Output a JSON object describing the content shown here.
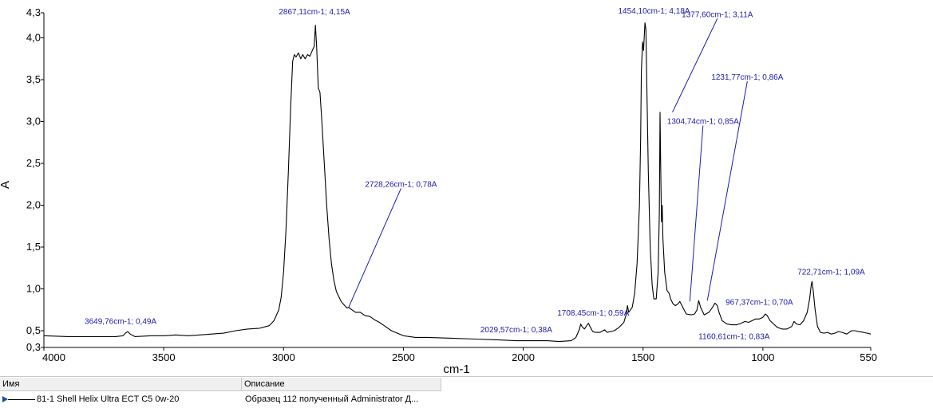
{
  "chart_data": {
    "type": "line",
    "xlabel": "cm-1",
    "ylabel": "A",
    "xlim": [
      4000,
      550
    ],
    "ylim": [
      0.3,
      4.3
    ],
    "x_ticks": [
      "4000",
      "3500",
      "3000",
      "2500",
      "2000",
      "1500",
      "1000",
      "550"
    ],
    "y_ticks": [
      "0,3",
      "0,5",
      "1,0",
      "1,5",
      "2,0",
      "2,5",
      "3,0",
      "3,5",
      "4,0",
      "4,3"
    ],
    "line_color": "#000000",
    "label_color": "#1b1bb0",
    "series": [
      {
        "name": "81-1 Shell Helix Ultra ECT C5 0w-20",
        "points": [
          [
            4000,
            0.44
          ],
          [
            3900,
            0.43
          ],
          [
            3800,
            0.43
          ],
          [
            3700,
            0.43
          ],
          [
            3670,
            0.44
          ],
          [
            3660,
            0.47
          ],
          [
            3650,
            0.49
          ],
          [
            3640,
            0.46
          ],
          [
            3620,
            0.43
          ],
          [
            3550,
            0.44
          ],
          [
            3500,
            0.44
          ],
          [
            3450,
            0.45
          ],
          [
            3400,
            0.44
          ],
          [
            3350,
            0.45
          ],
          [
            3300,
            0.46
          ],
          [
            3250,
            0.47
          ],
          [
            3200,
            0.5
          ],
          [
            3150,
            0.52
          ],
          [
            3100,
            0.53
          ],
          [
            3060,
            0.56
          ],
          [
            3040,
            0.62
          ],
          [
            3020,
            0.75
          ],
          [
            3010,
            0.9
          ],
          [
            3000,
            1.2
          ],
          [
            2990,
            1.7
          ],
          [
            2980,
            2.4
          ],
          [
            2970,
            3.2
          ],
          [
            2962,
            3.72
          ],
          [
            2955,
            3.8
          ],
          [
            2948,
            3.77
          ],
          [
            2938,
            3.82
          ],
          [
            2928,
            3.75
          ],
          [
            2920,
            3.8
          ],
          [
            2910,
            3.75
          ],
          [
            2900,
            3.8
          ],
          [
            2890,
            3.78
          ],
          [
            2880,
            3.85
          ],
          [
            2872,
            3.9
          ],
          [
            2867,
            4.15
          ],
          [
            2862,
            3.9
          ],
          [
            2855,
            3.4
          ],
          [
            2848,
            3.35
          ],
          [
            2840,
            3.0
          ],
          [
            2830,
            2.5
          ],
          [
            2820,
            2.0
          ],
          [
            2810,
            1.6
          ],
          [
            2800,
            1.3
          ],
          [
            2790,
            1.1
          ],
          [
            2780,
            0.97
          ],
          [
            2760,
            0.85
          ],
          [
            2745,
            0.8
          ],
          [
            2735,
            0.77
          ],
          [
            2728,
            0.78
          ],
          [
            2720,
            0.76
          ],
          [
            2700,
            0.72
          ],
          [
            2680,
            0.72
          ],
          [
            2660,
            0.68
          ],
          [
            2640,
            0.67
          ],
          [
            2620,
            0.63
          ],
          [
            2600,
            0.6
          ],
          [
            2580,
            0.56
          ],
          [
            2550,
            0.5
          ],
          [
            2500,
            0.44
          ],
          [
            2450,
            0.42
          ],
          [
            2400,
            0.42
          ],
          [
            2300,
            0.41
          ],
          [
            2200,
            0.4
          ],
          [
            2100,
            0.39
          ],
          [
            2029,
            0.38
          ],
          [
            1950,
            0.38
          ],
          [
            1900,
            0.38
          ],
          [
            1850,
            0.37
          ],
          [
            1800,
            0.38
          ],
          [
            1780,
            0.42
          ],
          [
            1765,
            0.52
          ],
          [
            1760,
            0.58
          ],
          [
            1755,
            0.55
          ],
          [
            1745,
            0.52
          ],
          [
            1735,
            0.56
          ],
          [
            1728,
            0.59
          ],
          [
            1720,
            0.54
          ],
          [
            1710,
            0.49
          ],
          [
            1700,
            0.48
          ],
          [
            1680,
            0.48
          ],
          [
            1660,
            0.51
          ],
          [
            1650,
            0.48
          ],
          [
            1620,
            0.5
          ],
          [
            1600,
            0.54
          ],
          [
            1580,
            0.6
          ],
          [
            1570,
            0.7
          ],
          [
            1565,
            0.8
          ],
          [
            1560,
            0.72
          ],
          [
            1545,
            0.78
          ],
          [
            1535,
            0.95
          ],
          [
            1525,
            1.3
          ],
          [
            1515,
            2.0
          ],
          [
            1510,
            2.8
          ],
          [
            1507,
            3.6
          ],
          [
            1502,
            3.95
          ],
          [
            1498,
            3.85
          ],
          [
            1492,
            4.18
          ],
          [
            1488,
            4.1
          ],
          [
            1484,
            3.4
          ],
          [
            1478,
            2.4
          ],
          [
            1470,
            1.5
          ],
          [
            1462,
            1.05
          ],
          [
            1455,
            0.88
          ],
          [
            1445,
            0.88
          ],
          [
            1437,
            1.2
          ],
          [
            1432,
            1.9
          ],
          [
            1429,
            3.11
          ],
          [
            1426,
            2.4
          ],
          [
            1423,
            1.8
          ],
          [
            1420,
            2.0
          ],
          [
            1417,
            1.6
          ],
          [
            1410,
            1.2
          ],
          [
            1400,
            0.98
          ],
          [
            1392,
            0.95
          ],
          [
            1385,
            0.88
          ],
          [
            1375,
            0.82
          ],
          [
            1365,
            0.8
          ],
          [
            1355,
            0.82
          ],
          [
            1347,
            0.85
          ],
          [
            1338,
            0.8
          ],
          [
            1320,
            0.7
          ],
          [
            1300,
            0.69
          ],
          [
            1285,
            0.7
          ],
          [
            1275,
            0.75
          ],
          [
            1268,
            0.86
          ],
          [
            1260,
            0.78
          ],
          [
            1245,
            0.69
          ],
          [
            1225,
            0.72
          ],
          [
            1210,
            0.78
          ],
          [
            1200,
            0.83
          ],
          [
            1190,
            0.8
          ],
          [
            1183,
            0.72
          ],
          [
            1170,
            0.62
          ],
          [
            1150,
            0.58
          ],
          [
            1130,
            0.57
          ],
          [
            1110,
            0.57
          ],
          [
            1090,
            0.59
          ],
          [
            1075,
            0.61
          ],
          [
            1060,
            0.6
          ],
          [
            1045,
            0.62
          ],
          [
            1030,
            0.64
          ],
          [
            1015,
            0.64
          ],
          [
            1000,
            0.66
          ],
          [
            990,
            0.7
          ],
          [
            982,
            0.68
          ],
          [
            970,
            0.62
          ],
          [
            955,
            0.58
          ],
          [
            940,
            0.54
          ],
          [
            920,
            0.52
          ],
          [
            900,
            0.52
          ],
          [
            880,
            0.55
          ],
          [
            870,
            0.61
          ],
          [
            860,
            0.58
          ],
          [
            845,
            0.57
          ],
          [
            830,
            0.62
          ],
          [
            815,
            0.72
          ],
          [
            805,
            0.88
          ],
          [
            798,
            1.05
          ],
          [
            795,
            1.09
          ],
          [
            790,
            0.98
          ],
          [
            782,
            0.75
          ],
          [
            772,
            0.55
          ],
          [
            760,
            0.48
          ],
          [
            745,
            0.47
          ],
          [
            730,
            0.48
          ],
          [
            715,
            0.46
          ],
          [
            700,
            0.47
          ],
          [
            685,
            0.49
          ],
          [
            670,
            0.48
          ],
          [
            650,
            0.46
          ],
          [
            640,
            0.48
          ],
          [
            630,
            0.5
          ],
          [
            615,
            0.5
          ],
          [
            600,
            0.49
          ],
          [
            580,
            0.48
          ],
          [
            565,
            0.47
          ],
          [
            550,
            0.46
          ]
        ]
      }
    ],
    "annotations": [
      {
        "text": "3649,76cm-1; 0,49A",
        "peak": [
          3649.76,
          0.49
        ],
        "label_at": [
          3680,
          0.58
        ]
      },
      {
        "text": "2867,11cm-1; 4,15A",
        "peak": [
          2867.11,
          4.15
        ],
        "label_at": [
          2871,
          4.28
        ]
      },
      {
        "text": "2728,26cm-1; 0,78A",
        "peak": [
          2728.26,
          0.78
        ],
        "label_at": [
          2510,
          2.22
        ],
        "leader": true
      },
      {
        "text": "2029,57cm-1; 0,38A",
        "peak": [
          2029.57,
          0.38
        ],
        "label_at": [
          2029,
          0.48
        ]
      },
      {
        "text": "1708,45cm-1; 0,59A",
        "peak": [
          1708.45,
          0.59
        ],
        "label_at": [
          1708,
          0.68
        ]
      },
      {
        "text": "1454,10cm-1; 4,18A",
        "peak": [
          1454.1,
          4.18
        ],
        "label_at": [
          1454,
          4.29
        ]
      },
      {
        "text": "1377,60cm-1; 3,11A",
        "peak": [
          1377.6,
          3.11
        ],
        "label_at": [
          1190,
          4.25
        ],
        "leader": true
      },
      {
        "text": "1304,74cm-1; 0,85A",
        "peak": [
          1304.74,
          0.85
        ],
        "label_at": [
          1250,
          2.97
        ],
        "leader": true
      },
      {
        "text": "1231,77cm-1; 0,86A",
        "peak": [
          1231.77,
          0.86
        ],
        "label_at": [
          1065,
          3.5
        ],
        "leader": true
      },
      {
        "text": "1160,61cm-1; 0,83A",
        "peak": [
          1160.61,
          0.83
        ],
        "label_at": [
          1120,
          0.4
        ]
      },
      {
        "text": "967,37cm-1; 0,70A",
        "peak": [
          967.37,
          0.7
        ],
        "label_at": [
          1015,
          0.81
        ]
      },
      {
        "text": "722,71cm-1; 1,09A",
        "peak": [
          722.71,
          1.09
        ],
        "label_at": [
          715,
          1.17
        ]
      }
    ]
  },
  "legend": {
    "headers": {
      "name": "Имя",
      "description": "Описание"
    },
    "rows": [
      {
        "name": "81-1 Shell Helix Ultra ECT C5 0w-20",
        "description": "Образец 112 полученный Administrator Д..."
      }
    ]
  }
}
